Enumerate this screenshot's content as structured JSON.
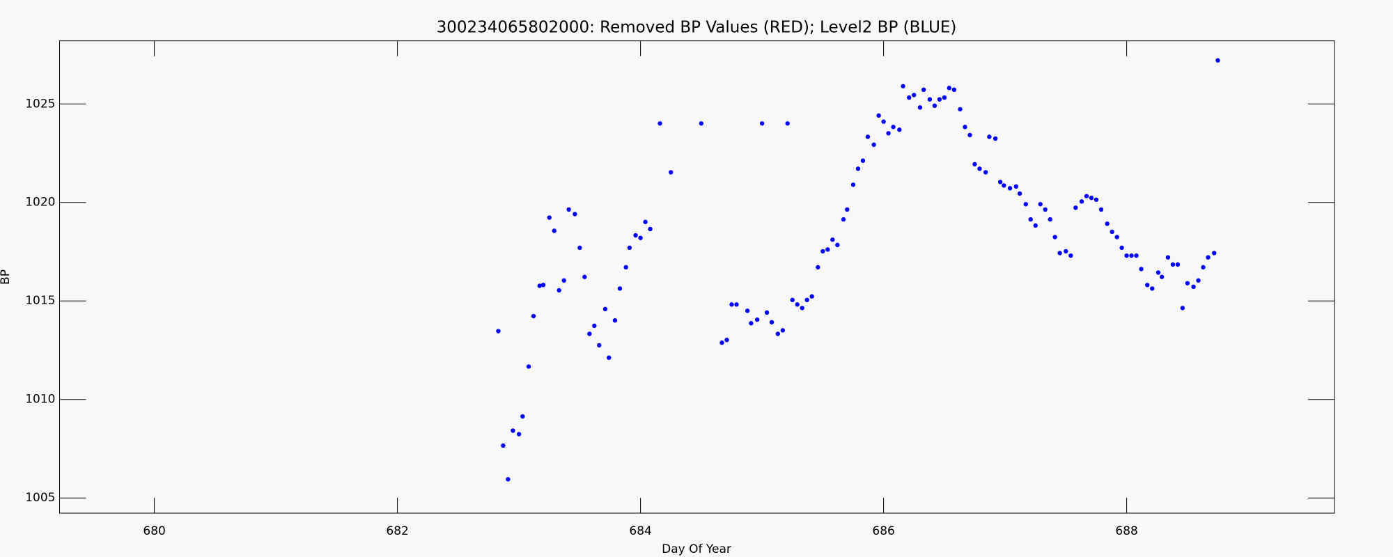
{
  "chart_data": {
    "type": "scatter",
    "title": "300234065802000: Removed BP Values (RED); Level2 BP (BLUE)",
    "xlabel": "Day Of Year",
    "ylabel": "BP",
    "color": "#0000ff",
    "xlim": [
      679.22,
      689.71
    ],
    "ylim": [
      1004.23,
      1028.2
    ],
    "xticks": [
      680,
      682,
      684,
      686,
      688
    ],
    "yticks": [
      1005,
      1010,
      1015,
      1020,
      1025
    ],
    "x": [
      682.83,
      682.87,
      682.91,
      682.95,
      683.0,
      683.03,
      683.08,
      683.12,
      683.17,
      683.2,
      683.25,
      683.29,
      683.33,
      683.37,
      683.41,
      683.46,
      683.5,
      683.54,
      683.58,
      683.62,
      683.66,
      683.71,
      683.74,
      683.79,
      683.83,
      683.88,
      683.91,
      683.96,
      684.0,
      684.04,
      684.08,
      684.16,
      684.25,
      684.5,
      684.67,
      684.71,
      684.75,
      684.79,
      684.88,
      684.91,
      684.96,
      685.0,
      685.04,
      685.08,
      685.13,
      685.17,
      685.21,
      685.25,
      685.29,
      685.33,
      685.37,
      685.41,
      685.46,
      685.5,
      685.54,
      685.58,
      685.62,
      685.67,
      685.7,
      685.75,
      685.79,
      685.83,
      685.87,
      685.92,
      685.96,
      686.0,
      686.04,
      686.08,
      686.13,
      686.16,
      686.21,
      686.25,
      686.3,
      686.33,
      686.38,
      686.42,
      686.46,
      686.5,
      686.54,
      686.58,
      686.63,
      686.67,
      686.71,
      686.75,
      686.79,
      686.84,
      686.87,
      686.92,
      686.96,
      686.99,
      687.04,
      687.09,
      687.12,
      687.17,
      687.21,
      687.25,
      687.29,
      687.33,
      687.37,
      687.41,
      687.45,
      687.5,
      687.54,
      687.58,
      687.63,
      687.67,
      687.71,
      687.75,
      687.79,
      687.84,
      687.88,
      687.92,
      687.96,
      688.0,
      688.04,
      688.08,
      688.12,
      688.17,
      688.21,
      688.26,
      688.29,
      688.34,
      688.38,
      688.42,
      688.46,
      688.5,
      688.55,
      688.59,
      688.63,
      688.67,
      688.72,
      688.75
    ],
    "values": [
      1013.47,
      1007.66,
      1005.95,
      1008.42,
      1008.24,
      1009.14,
      1011.67,
      1014.23,
      1015.77,
      1015.81,
      1019.23,
      1018.56,
      1015.54,
      1016.04,
      1019.64,
      1019.41,
      1017.7,
      1016.22,
      1013.33,
      1013.74,
      1012.75,
      1014.59,
      1012.12,
      1014.01,
      1015.63,
      1016.71,
      1017.7,
      1018.33,
      1018.2,
      1019.01,
      1018.65,
      1024.01,
      1021.53,
      1024.01,
      1012.88,
      1013.02,
      1014.82,
      1014.82,
      1014.5,
      1013.87,
      1014.05,
      1024.01,
      1014.41,
      1013.92,
      1013.33,
      1013.51,
      1024.01,
      1015.05,
      1014.82,
      1014.64,
      1015.05,
      1015.23,
      1016.71,
      1017.52,
      1017.61,
      1018.11,
      1017.84,
      1019.14,
      1019.64,
      1020.9,
      1021.71,
      1022.12,
      1023.33,
      1022.93,
      1024.41,
      1024.1,
      1023.51,
      1023.83,
      1023.69,
      1025.9,
      1025.32,
      1025.45,
      1024.82,
      1025.72,
      1025.23,
      1024.91,
      1025.23,
      1025.32,
      1025.81,
      1025.72,
      1024.73,
      1023.83,
      1023.42,
      1021.94,
      1021.71,
      1021.53,
      1023.33,
      1023.24,
      1021.04,
      1020.86,
      1020.72,
      1020.81,
      1020.45,
      1019.91,
      1019.14,
      1018.83,
      1019.91,
      1019.64,
      1019.14,
      1018.24,
      1017.43,
      1017.52,
      1017.3,
      1019.73,
      1020.05,
      1020.32,
      1020.23,
      1020.14,
      1019.64,
      1018.92,
      1018.51,
      1018.24,
      1017.7,
      1017.3,
      1017.3,
      1017.3,
      1016.62,
      1015.81,
      1015.63,
      1016.44,
      1016.22,
      1017.21,
      1016.85,
      1016.85,
      1014.64,
      1015.9,
      1015.72,
      1016.04,
      1016.71,
      1017.21,
      1017.43,
      1027.21
    ]
  }
}
